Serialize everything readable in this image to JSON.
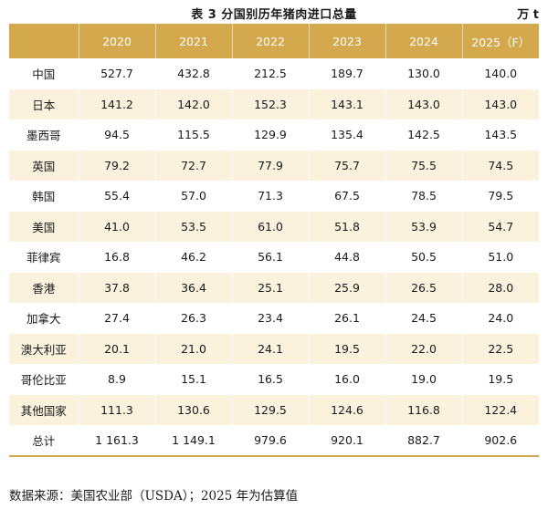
{
  "header": {
    "title": "表 3  分国别历年猪肉进口总量",
    "unit": "万 t"
  },
  "table": {
    "columns": [
      "",
      "2020",
      "2021",
      "2022",
      "2023",
      "2024",
      "2025（F）"
    ],
    "rows": [
      [
        "中国",
        "527.7",
        "432.8",
        "212.5",
        "189.7",
        "130.0",
        "140.0"
      ],
      [
        "日本",
        "141.2",
        "142.0",
        "152.3",
        "143.1",
        "143.0",
        "143.0"
      ],
      [
        "墨西哥",
        "94.5",
        "115.5",
        "129.9",
        "135.4",
        "142.5",
        "143.5"
      ],
      [
        "英国",
        "79.2",
        "72.7",
        "77.9",
        "75.7",
        "75.5",
        "74.5"
      ],
      [
        "韩国",
        "55.4",
        "57.0",
        "71.3",
        "67.5",
        "78.5",
        "79.5"
      ],
      [
        "美国",
        "41.0",
        "53.5",
        "61.0",
        "51.8",
        "53.9",
        "54.7"
      ],
      [
        "菲律宾",
        "16.8",
        "46.2",
        "56.1",
        "44.8",
        "50.5",
        "51.0"
      ],
      [
        "香港",
        "37.8",
        "36.4",
        "25.1",
        "25.9",
        "26.5",
        "28.0"
      ],
      [
        "加拿大",
        "27.4",
        "26.3",
        "23.4",
        "26.1",
        "24.5",
        "24.0"
      ],
      [
        "澳大利亚",
        "20.1",
        "21.0",
        "24.1",
        "19.5",
        "22.0",
        "22.5"
      ],
      [
        "哥伦比亚",
        "8.9",
        "15.1",
        "16.5",
        "16.0",
        "19.0",
        "19.5"
      ],
      [
        "其他国家",
        "111.3",
        "130.6",
        "129.5",
        "124.6",
        "116.8",
        "122.4"
      ],
      [
        "总计",
        "1 161.3",
        "1 149.1",
        "979.6",
        "920.1",
        "882.7",
        "902.6"
      ]
    ]
  },
  "footer": {
    "source": "数据来源：美国农业部（USDA）；2025 年为估算值"
  },
  "colors": {
    "header_bg": "#d4a94e",
    "stripe_bg": "#fbf2dd"
  }
}
